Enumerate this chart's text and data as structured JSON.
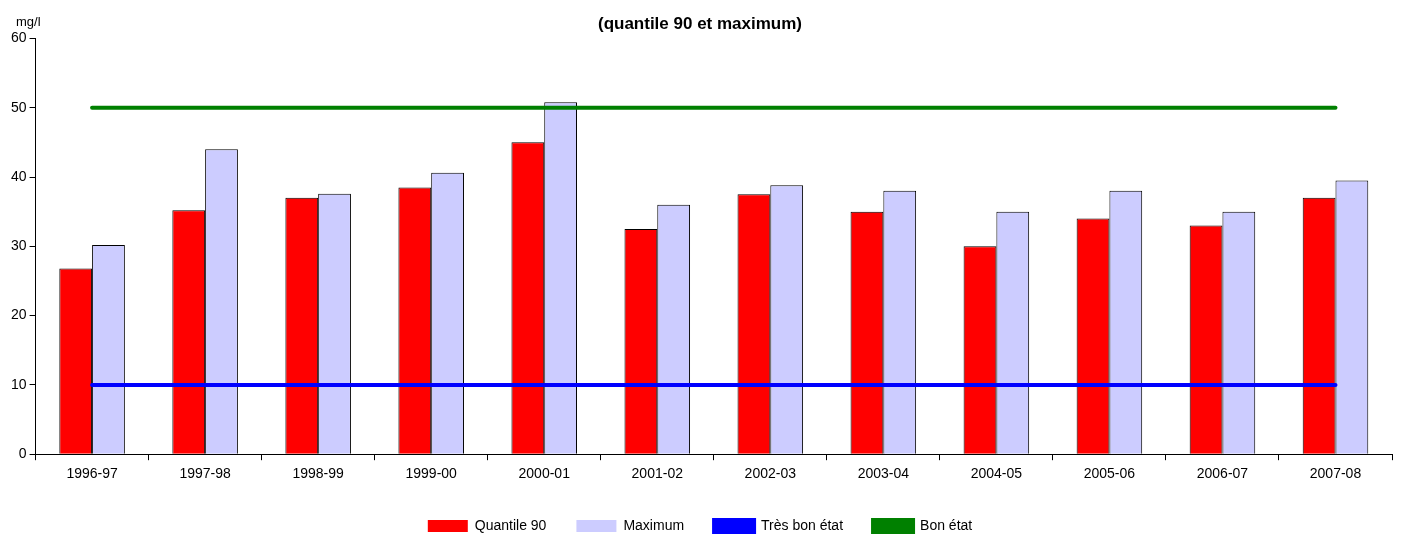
{
  "chart_data": {
    "type": "bar",
    "title": "(quantile 90 et maximum)",
    "ylabel": "mg/l",
    "categories": [
      "1996-97",
      "1997-98",
      "1998-99",
      "1999-00",
      "2000-01",
      "2001-02",
      "2002-03",
      "2003-04",
      "2004-05",
      "2005-06",
      "2006-07",
      "2007-08"
    ],
    "series": [
      {
        "name": "Quantile 90",
        "color": "#ff0000",
        "values": [
          26.8,
          35.2,
          37,
          38.5,
          45,
          32.5,
          37.5,
          35,
          30,
          34,
          33,
          37
        ]
      },
      {
        "name": "Maximum",
        "color": "#ccccff",
        "values": [
          30.2,
          44,
          37.6,
          40.6,
          50.8,
          36,
          38.8,
          38,
          35,
          38,
          35,
          39.5
        ]
      },
      {
        "name": "Très bon état",
        "type": "line",
        "color": "#0000ff",
        "values": [
          10,
          10,
          10,
          10,
          10,
          10,
          10,
          10,
          10,
          10,
          10,
          10
        ]
      },
      {
        "name": "Bon état",
        "type": "line",
        "color": "#008000",
        "values": [
          50,
          50,
          50,
          50,
          50,
          50,
          50,
          50,
          50,
          50,
          50,
          50
        ]
      }
    ],
    "ylim": [
      0,
      60
    ],
    "yticks": [
      0,
      10,
      20,
      30,
      40,
      50,
      60
    ],
    "grid": false,
    "legend": "bottom",
    "marker": "none"
  }
}
